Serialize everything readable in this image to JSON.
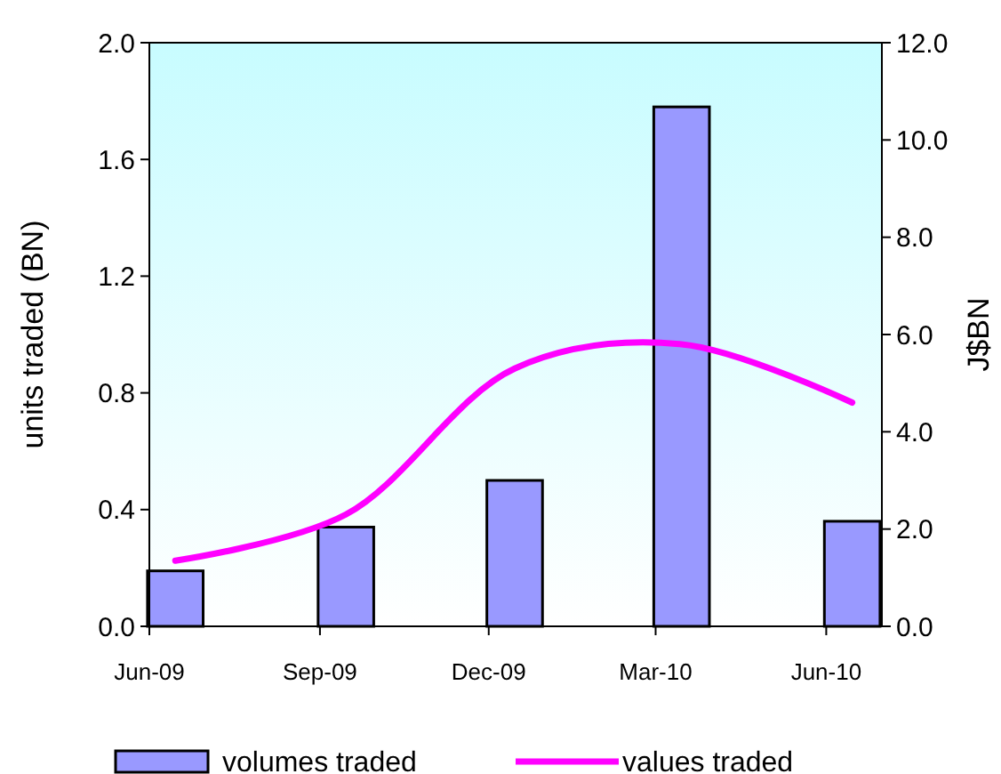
{
  "chart_data": {
    "type": "bar",
    "x": [
      "2009-06-15",
      "2009-09-15",
      "2009-12-15",
      "2010-03-15",
      "2010-06-15"
    ],
    "xlim": [
      "2009-06",
      "2010-07"
    ],
    "xticks": [
      {
        "value": "2009-06",
        "label": "Jun-09"
      },
      {
        "value": "2009-09",
        "label": "Sep-09"
      },
      {
        "value": "2009-12",
        "label": "Dec-09"
      },
      {
        "value": "2010-03",
        "label": "Mar-10"
      },
      {
        "value": "2010-06",
        "label": "Jun-10"
      }
    ],
    "ylabel": "units traded (BN)",
    "y2label": "J$BN",
    "ylim": [
      0,
      2
    ],
    "yticks": [
      {
        "value": 0,
        "label": "0.0"
      },
      {
        "value": 0.4,
        "label": "0.4"
      },
      {
        "value": 0.8,
        "label": "0.8"
      },
      {
        "value": 1.2,
        "label": "1.2"
      },
      {
        "value": 1.6,
        "label": "1.6"
      },
      {
        "value": 2,
        "label": "2.0"
      }
    ],
    "y2lim": [
      0,
      12
    ],
    "y2ticks": [
      {
        "value": 0,
        "label": "0.0"
      },
      {
        "value": 2,
        "label": "2.0"
      },
      {
        "value": 4,
        "label": "4.0"
      },
      {
        "value": 6,
        "label": "6.0"
      },
      {
        "value": 8,
        "label": "8.0"
      },
      {
        "value": 10,
        "label": "10.0"
      },
      {
        "value": 12,
        "label": "12.0"
      }
    ],
    "series": [
      {
        "name": "volumes traded",
        "color": "#9999ff",
        "values": [
          0.19,
          0.34,
          0.5,
          1.78,
          0.36
        ]
      },
      {
        "name": "values traded",
        "type": "line",
        "axis": "y2",
        "color": "#ff00ff",
        "values": [
          1.35,
          2.3,
          5.3,
          5.8,
          4.6
        ]
      }
    ],
    "legend": "bottom",
    "grid": false
  }
}
